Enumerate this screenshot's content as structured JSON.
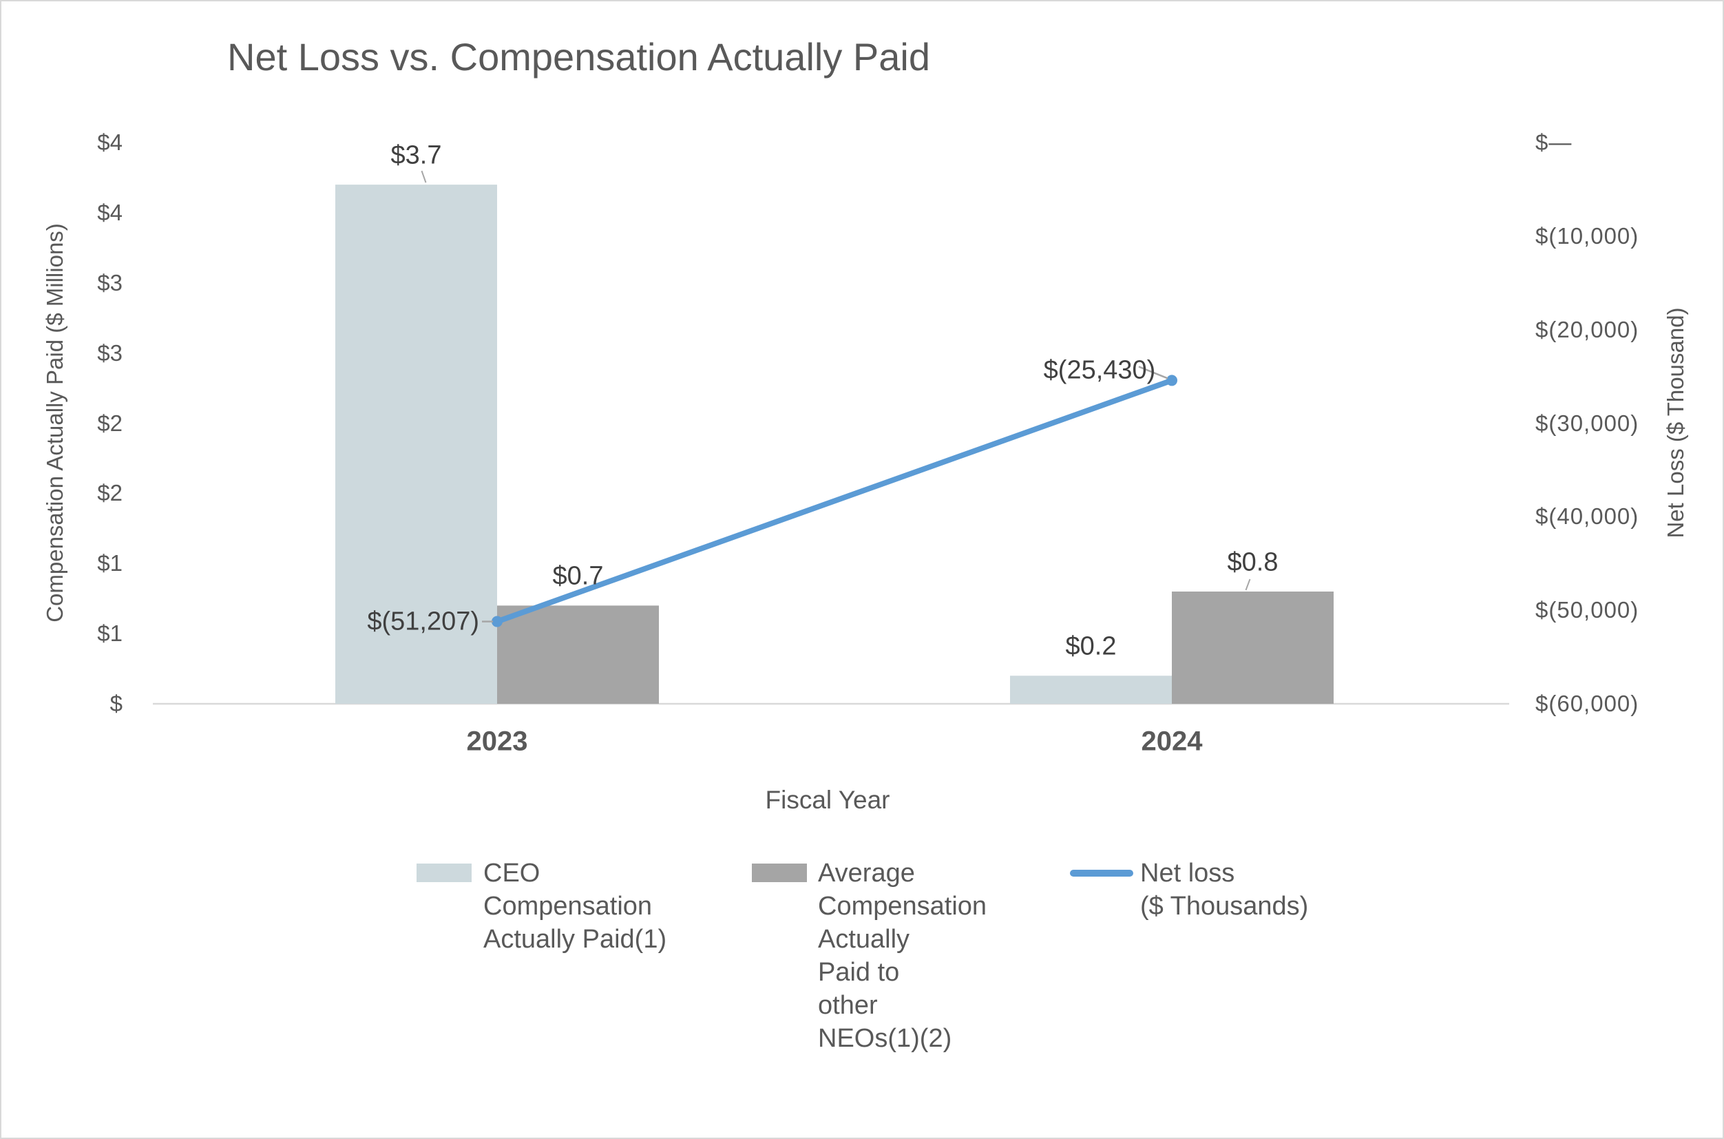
{
  "chart_data": {
    "type": "combo_bar_line",
    "title": "Net Loss vs. Compensation Actually Paid",
    "categories": [
      "2023",
      "2024"
    ],
    "x_axis": {
      "title": "Fiscal Year"
    },
    "left_axis": {
      "title": "Compensation Actually Paid ($ Millions)",
      "range": [
        0,
        4
      ],
      "tick_interval": 0.5,
      "tick_labels_bottom_to_top": [
        "$",
        "$1",
        "$1",
        "$2",
        "$2",
        "$3",
        "$3",
        "$4",
        "$4"
      ]
    },
    "right_axis": {
      "title": "Net Loss ($ Thousand)",
      "range": [
        -60000,
        0
      ],
      "tick_interval": 10000,
      "tick_labels_top_to_bottom": [
        "$—",
        "$(10,000)",
        "$(20,000)",
        "$(30,000)",
        "$(40,000)",
        "$(50,000)",
        "$(60,000)"
      ]
    },
    "series": [
      {
        "name": "CEO Compensation Actually Paid(1)",
        "type": "bar",
        "axis": "left",
        "units": "$ Millions",
        "color": "#cdd9dd",
        "values": [
          3.7,
          0.2
        ],
        "data_labels": [
          "$3.7",
          "$0.2"
        ]
      },
      {
        "name": "Average Compensation Actually Paid to other NEOs(1)(2)",
        "type": "bar",
        "axis": "left",
        "units": "$ Millions",
        "color": "#a5a5a5",
        "values": [
          0.7,
          0.8
        ],
        "data_labels": [
          "$0.7",
          "$0.8"
        ]
      },
      {
        "name": "Net loss ($ Thousands)",
        "type": "line",
        "axis": "right",
        "units": "$ Thousands",
        "color": "#5b9bd5",
        "values": [
          -51207,
          -25430
        ],
        "data_labels": [
          "$(51,207)",
          "$(25,430)"
        ]
      }
    ],
    "legend_position": "bottom",
    "grid": false,
    "axis_line_color": "#d9d9d9",
    "leader_line_color": "#a6a6a6"
  },
  "legend": {
    "items": [
      {
        "series": 0,
        "swatch": "square",
        "lines": [
          "CEO",
          "Compensation",
          "Actually Paid(1)"
        ]
      },
      {
        "series": 1,
        "swatch": "square",
        "lines": [
          "Average",
          "Compensation",
          "Actually",
          "Paid to",
          "other",
          "NEOs(1)(2)"
        ]
      },
      {
        "series": 2,
        "swatch": "line",
        "lines": [
          "Net loss",
          "($ Thousands)"
        ]
      }
    ]
  }
}
